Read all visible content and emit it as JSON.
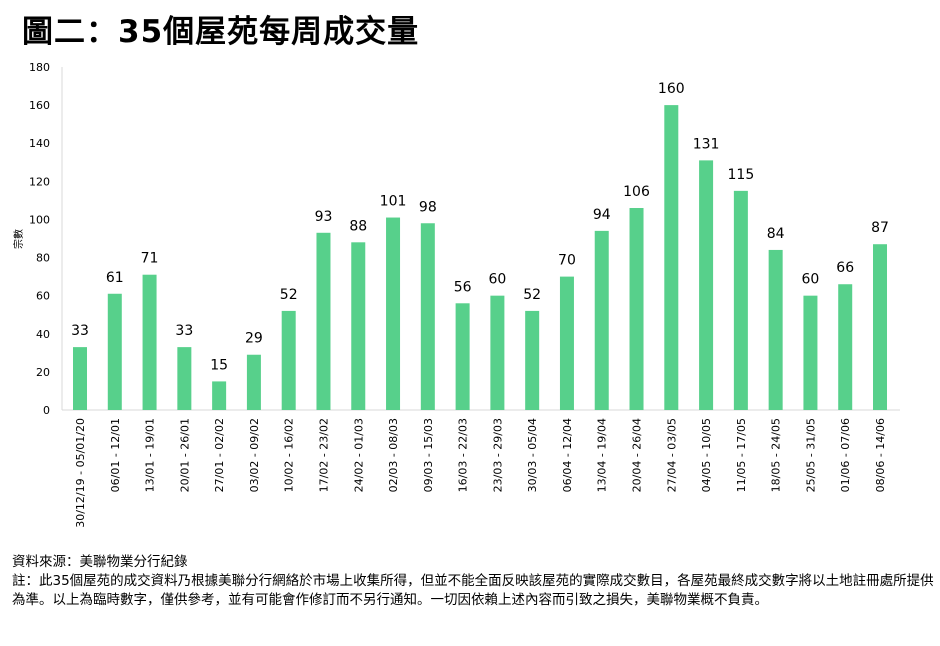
{
  "chart_data": {
    "type": "bar",
    "title": "圖二：35個屋苑每周成交量",
    "xlabel": "",
    "ylabel": "宗數",
    "ylim": [
      0,
      180
    ],
    "yticks": [
      0,
      20,
      40,
      60,
      80,
      100,
      120,
      140,
      160,
      180
    ],
    "grid": false,
    "legend": "none",
    "bar_color": "#57d08b",
    "categories": [
      "30/12/19 - 05/01/20",
      "06/01 - 12/01",
      "13/01 - 19/01",
      "20/01 - 26/01",
      "27/01 - 02/02",
      "03/02 - 09/02",
      "10/02 - 16/02",
      "17/02 - 23/02",
      "24/02 - 01/03",
      "02/03 - 08/03",
      "09/03 - 15/03",
      "16/03 - 22/03",
      "23/03 - 29/03",
      "30/03 - 05/04",
      "06/04 - 12/04",
      "13/04 - 19/04",
      "20/04 - 26/04",
      "27/04 - 03/05",
      "04/05 - 10/05",
      "11/05 - 17/05",
      "18/05 - 24/05",
      "25/05 - 31/05",
      "01/06 - 07/06",
      "08/06 - 14/06"
    ],
    "values": [
      33,
      61,
      71,
      33,
      15,
      29,
      52,
      93,
      88,
      101,
      98,
      56,
      60,
      52,
      70,
      94,
      106,
      160,
      131,
      115,
      84,
      60,
      66,
      87
    ]
  },
  "notes": {
    "source": "資料來源：美聯物業分行紀錄",
    "disclaimer": "註：此35個屋苑的成交資料乃根據美聯分行網絡於市場上收集所得，但並不能全面反映該屋苑的實際成交數目，各屋苑最終成交數字將以土地註冊處所提供為準。以上為臨時數字，僅供參考，並有可能會作修訂而不另行通知。一切因依賴上述內容而引致之損失，美聯物業概不負責。"
  }
}
